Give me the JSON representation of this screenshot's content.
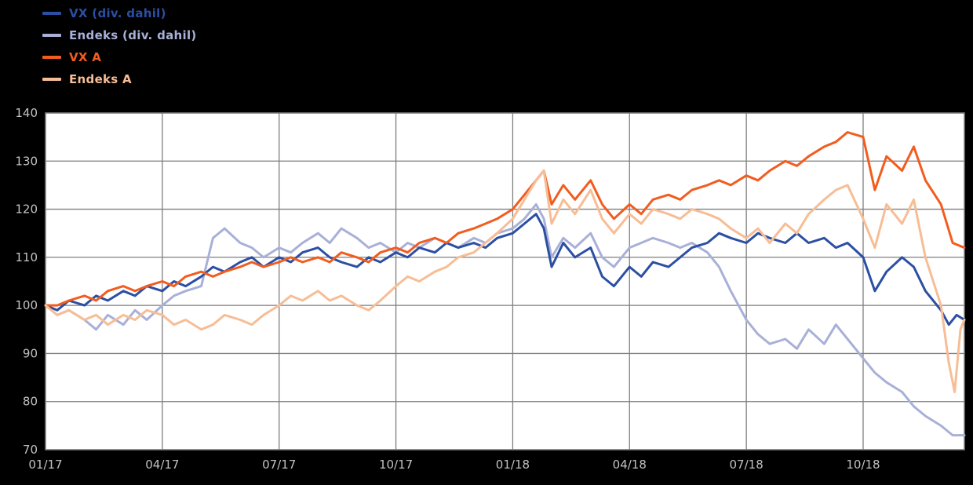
{
  "page": {
    "background": "#000000",
    "plot_background": "#ffffff",
    "grid_color": "#7f7f7f",
    "tick_label_color": "#c2c2c2"
  },
  "chart_data": {
    "type": "line",
    "title": "",
    "xlabel": "",
    "ylabel": "",
    "grid": true,
    "legend_position": "top-left",
    "x_axis": {
      "tick_labels": [
        "01/17",
        "04/17",
        "07/17",
        "10/17",
        "01/18",
        "04/18",
        "07/18",
        "10/18"
      ],
      "tick_positions_months": [
        0,
        3,
        6,
        9,
        12,
        15,
        18,
        21
      ],
      "range_months": [
        0,
        23.6
      ]
    },
    "y_axis": {
      "ticks": [
        70,
        80,
        90,
        100,
        110,
        120,
        130,
        140
      ],
      "range": [
        70,
        140
      ]
    },
    "series": [
      {
        "name": "Endeks (div. dahil)",
        "color": "#a9b0d8",
        "points": [
          [
            0,
            100
          ],
          [
            0.3,
            98
          ],
          [
            0.6,
            99
          ],
          [
            1,
            97
          ],
          [
            1.3,
            95
          ],
          [
            1.6,
            98
          ],
          [
            2,
            96
          ],
          [
            2.3,
            99
          ],
          [
            2.6,
            97
          ],
          [
            3,
            100
          ],
          [
            3.3,
            102
          ],
          [
            3.6,
            103
          ],
          [
            4,
            104
          ],
          [
            4.3,
            114
          ],
          [
            4.6,
            116
          ],
          [
            5,
            113
          ],
          [
            5.3,
            112
          ],
          [
            5.6,
            110
          ],
          [
            6,
            112
          ],
          [
            6.3,
            111
          ],
          [
            6.6,
            113
          ],
          [
            7,
            115
          ],
          [
            7.3,
            113
          ],
          [
            7.6,
            116
          ],
          [
            8,
            114
          ],
          [
            8.3,
            112
          ],
          [
            8.6,
            113
          ],
          [
            9,
            111
          ],
          [
            9.3,
            113
          ],
          [
            9.6,
            112
          ],
          [
            10,
            114
          ],
          [
            10.3,
            113
          ],
          [
            10.6,
            112
          ],
          [
            11,
            114
          ],
          [
            11.3,
            113
          ],
          [
            11.6,
            115
          ],
          [
            12,
            116
          ],
          [
            12.3,
            118
          ],
          [
            12.6,
            121
          ],
          [
            12.8,
            118
          ],
          [
            13,
            110
          ],
          [
            13.3,
            114
          ],
          [
            13.6,
            112
          ],
          [
            14,
            115
          ],
          [
            14.3,
            110
          ],
          [
            14.6,
            108
          ],
          [
            15,
            112
          ],
          [
            15.3,
            113
          ],
          [
            15.6,
            114
          ],
          [
            16,
            113
          ],
          [
            16.3,
            112
          ],
          [
            16.6,
            113
          ],
          [
            17,
            111
          ],
          [
            17.3,
            108
          ],
          [
            17.6,
            103
          ],
          [
            18,
            97
          ],
          [
            18.3,
            94
          ],
          [
            18.6,
            92
          ],
          [
            19,
            93
          ],
          [
            19.3,
            91
          ],
          [
            19.6,
            95
          ],
          [
            20,
            92
          ],
          [
            20.3,
            96
          ],
          [
            20.6,
            93
          ],
          [
            21,
            89
          ],
          [
            21.3,
            86
          ],
          [
            21.6,
            84
          ],
          [
            22,
            82
          ],
          [
            22.3,
            79
          ],
          [
            22.6,
            77
          ],
          [
            23,
            75
          ],
          [
            23.3,
            73
          ],
          [
            23.6,
            73
          ]
        ]
      },
      {
        "name": "VX (div. dahil)",
        "color": "#2b4fa2",
        "points": [
          [
            0,
            100
          ],
          [
            0.3,
            99
          ],
          [
            0.6,
            101
          ],
          [
            1,
            100
          ],
          [
            1.3,
            102
          ],
          [
            1.6,
            101
          ],
          [
            2,
            103
          ],
          [
            2.3,
            102
          ],
          [
            2.6,
            104
          ],
          [
            3,
            103
          ],
          [
            3.3,
            105
          ],
          [
            3.6,
            104
          ],
          [
            4,
            106
          ],
          [
            4.3,
            108
          ],
          [
            4.6,
            107
          ],
          [
            5,
            109
          ],
          [
            5.3,
            110
          ],
          [
            5.6,
            108
          ],
          [
            6,
            110
          ],
          [
            6.3,
            109
          ],
          [
            6.6,
            111
          ],
          [
            7,
            112
          ],
          [
            7.3,
            110
          ],
          [
            7.6,
            109
          ],
          [
            8,
            108
          ],
          [
            8.3,
            110
          ],
          [
            8.6,
            109
          ],
          [
            9,
            111
          ],
          [
            9.3,
            110
          ],
          [
            9.6,
            112
          ],
          [
            10,
            111
          ],
          [
            10.3,
            113
          ],
          [
            10.6,
            112
          ],
          [
            11,
            113
          ],
          [
            11.3,
            112
          ],
          [
            11.6,
            114
          ],
          [
            12,
            115
          ],
          [
            12.3,
            117
          ],
          [
            12.6,
            119
          ],
          [
            12.8,
            116
          ],
          [
            13,
            108
          ],
          [
            13.3,
            113
          ],
          [
            13.6,
            110
          ],
          [
            14,
            112
          ],
          [
            14.3,
            106
          ],
          [
            14.6,
            104
          ],
          [
            15,
            108
          ],
          [
            15.3,
            106
          ],
          [
            15.6,
            109
          ],
          [
            16,
            108
          ],
          [
            16.3,
            110
          ],
          [
            16.6,
            112
          ],
          [
            17,
            113
          ],
          [
            17.3,
            115
          ],
          [
            17.6,
            114
          ],
          [
            18,
            113
          ],
          [
            18.3,
            115
          ],
          [
            18.6,
            114
          ],
          [
            19,
            113
          ],
          [
            19.3,
            115
          ],
          [
            19.6,
            113
          ],
          [
            20,
            114
          ],
          [
            20.3,
            112
          ],
          [
            20.6,
            113
          ],
          [
            21,
            110
          ],
          [
            21.3,
            103
          ],
          [
            21.6,
            107
          ],
          [
            22,
            110
          ],
          [
            22.3,
            108
          ],
          [
            22.6,
            103
          ],
          [
            23,
            99
          ],
          [
            23.2,
            96
          ],
          [
            23.4,
            98
          ],
          [
            23.6,
            97
          ]
        ]
      },
      {
        "name": "VX A",
        "color": "#f25c1f",
        "points": [
          [
            0,
            100
          ],
          [
            0.3,
            100
          ],
          [
            0.6,
            101
          ],
          [
            1,
            102
          ],
          [
            1.3,
            101
          ],
          [
            1.6,
            103
          ],
          [
            2,
            104
          ],
          [
            2.3,
            103
          ],
          [
            2.6,
            104
          ],
          [
            3,
            105
          ],
          [
            3.3,
            104
          ],
          [
            3.6,
            106
          ],
          [
            4,
            107
          ],
          [
            4.3,
            106
          ],
          [
            4.6,
            107
          ],
          [
            5,
            108
          ],
          [
            5.3,
            109
          ],
          [
            5.6,
            108
          ],
          [
            6,
            109
          ],
          [
            6.3,
            110
          ],
          [
            6.6,
            109
          ],
          [
            7,
            110
          ],
          [
            7.3,
            109
          ],
          [
            7.6,
            111
          ],
          [
            8,
            110
          ],
          [
            8.3,
            109
          ],
          [
            8.6,
            111
          ],
          [
            9,
            112
          ],
          [
            9.3,
            111
          ],
          [
            9.6,
            113
          ],
          [
            10,
            114
          ],
          [
            10.3,
            113
          ],
          [
            10.6,
            115
          ],
          [
            11,
            116
          ],
          [
            11.3,
            117
          ],
          [
            11.6,
            118
          ],
          [
            12,
            120
          ],
          [
            12.3,
            123
          ],
          [
            12.6,
            126
          ],
          [
            12.8,
            128
          ],
          [
            13,
            121
          ],
          [
            13.3,
            125
          ],
          [
            13.6,
            122
          ],
          [
            14,
            126
          ],
          [
            14.3,
            121
          ],
          [
            14.6,
            118
          ],
          [
            15,
            121
          ],
          [
            15.3,
            119
          ],
          [
            15.6,
            122
          ],
          [
            16,
            123
          ],
          [
            16.3,
            122
          ],
          [
            16.6,
            124
          ],
          [
            17,
            125
          ],
          [
            17.3,
            126
          ],
          [
            17.6,
            125
          ],
          [
            18,
            127
          ],
          [
            18.3,
            126
          ],
          [
            18.6,
            128
          ],
          [
            19,
            130
          ],
          [
            19.3,
            129
          ],
          [
            19.6,
            131
          ],
          [
            20,
            133
          ],
          [
            20.3,
            134
          ],
          [
            20.6,
            136
          ],
          [
            21,
            135
          ],
          [
            21.3,
            124
          ],
          [
            21.6,
            131
          ],
          [
            22,
            128
          ],
          [
            22.3,
            133
          ],
          [
            22.6,
            126
          ],
          [
            23,
            121
          ],
          [
            23.3,
            113
          ],
          [
            23.6,
            112
          ]
        ]
      },
      {
        "name": "Endeks A",
        "color": "#f7bd95",
        "points": [
          [
            0,
            100
          ],
          [
            0.3,
            98
          ],
          [
            0.6,
            99
          ],
          [
            1,
            97
          ],
          [
            1.3,
            98
          ],
          [
            1.6,
            96
          ],
          [
            2,
            98
          ],
          [
            2.3,
            97
          ],
          [
            2.6,
            99
          ],
          [
            3,
            98
          ],
          [
            3.3,
            96
          ],
          [
            3.6,
            97
          ],
          [
            4,
            95
          ],
          [
            4.3,
            96
          ],
          [
            4.6,
            98
          ],
          [
            5,
            97
          ],
          [
            5.3,
            96
          ],
          [
            5.6,
            98
          ],
          [
            6,
            100
          ],
          [
            6.3,
            102
          ],
          [
            6.6,
            101
          ],
          [
            7,
            103
          ],
          [
            7.3,
            101
          ],
          [
            7.6,
            102
          ],
          [
            8,
            100
          ],
          [
            8.3,
            99
          ],
          [
            8.6,
            101
          ],
          [
            9,
            104
          ],
          [
            9.3,
            106
          ],
          [
            9.6,
            105
          ],
          [
            10,
            107
          ],
          [
            10.3,
            108
          ],
          [
            10.6,
            110
          ],
          [
            11,
            111
          ],
          [
            11.3,
            113
          ],
          [
            11.6,
            115
          ],
          [
            12,
            118
          ],
          [
            12.3,
            122
          ],
          [
            12.6,
            126
          ],
          [
            12.8,
            128
          ],
          [
            13,
            117
          ],
          [
            13.3,
            122
          ],
          [
            13.6,
            119
          ],
          [
            14,
            124
          ],
          [
            14.3,
            118
          ],
          [
            14.6,
            115
          ],
          [
            15,
            119
          ],
          [
            15.3,
            117
          ],
          [
            15.6,
            120
          ],
          [
            16,
            119
          ],
          [
            16.3,
            118
          ],
          [
            16.6,
            120
          ],
          [
            17,
            119
          ],
          [
            17.3,
            118
          ],
          [
            17.6,
            116
          ],
          [
            18,
            114
          ],
          [
            18.3,
            116
          ],
          [
            18.6,
            113
          ],
          [
            19,
            117
          ],
          [
            19.3,
            115
          ],
          [
            19.6,
            119
          ],
          [
            20,
            122
          ],
          [
            20.3,
            124
          ],
          [
            20.6,
            125
          ],
          [
            21,
            118
          ],
          [
            21.3,
            112
          ],
          [
            21.6,
            121
          ],
          [
            22,
            117
          ],
          [
            22.3,
            122
          ],
          [
            22.6,
            110
          ],
          [
            23,
            100
          ],
          [
            23.2,
            88
          ],
          [
            23.35,
            82
          ],
          [
            23.5,
            95
          ],
          [
            23.6,
            97
          ]
        ]
      }
    ],
    "legend_order": [
      "VX (div. dahil)",
      "Endeks (div. dahil)",
      "VX A",
      "Endeks A"
    ]
  }
}
